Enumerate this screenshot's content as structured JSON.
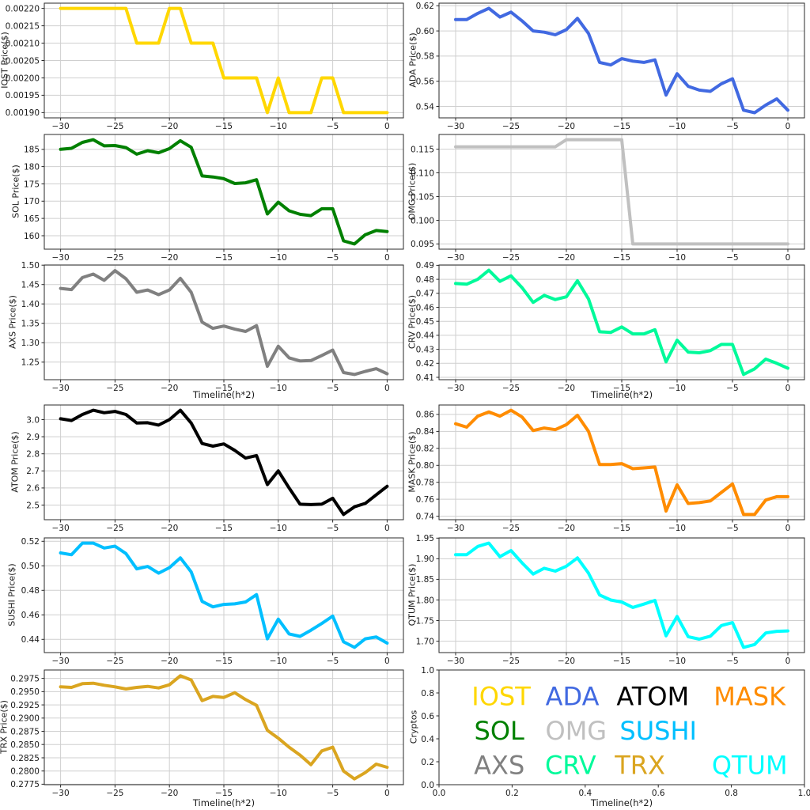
{
  "figure": {
    "background": "#ffffff",
    "grid_color": "#cfcfcf",
    "axis_color": "#2a2a2a",
    "tick_label_color": "#1a1a1a"
  },
  "x_axis": {
    "label": "Timeline(h*2)",
    "start": -30,
    "end": 0,
    "xlim": [
      -31.5,
      1.5
    ],
    "ticks": [
      -30,
      -25,
      -20,
      -15,
      -10,
      -5,
      0
    ],
    "tick_labels": [
      "−30",
      "−25",
      "−20",
      "−15",
      "−10",
      "−5",
      "0"
    ]
  },
  "chart_data": [
    {
      "type": "line",
      "name": "IOST",
      "ylabel": "IOST Price($)",
      "color": "#FFD700",
      "grid": true,
      "ylim": [
        0.001885,
        0.002215
      ],
      "yticks": [
        0.0019,
        0.00195,
        0.002,
        0.00205,
        0.0021,
        0.00215,
        0.0022
      ],
      "ytick_labels": [
        "0.00190",
        "0.00195",
        "0.00200",
        "0.00205",
        "0.00210",
        "0.00215",
        "0.00220"
      ],
      "values": [
        0.0022,
        0.0022,
        0.0022,
        0.0022,
        0.0022,
        0.0022,
        0.0022,
        0.0021,
        0.0021,
        0.0021,
        0.0022,
        0.0022,
        0.0021,
        0.0021,
        0.0021,
        0.002,
        0.002,
        0.002,
        0.002,
        0.0019,
        0.002,
        0.0019,
        0.0019,
        0.0019,
        0.002,
        0.002,
        0.0019,
        0.0019,
        0.0019,
        0.0019,
        0.0019
      ]
    },
    {
      "type": "line",
      "name": "ADA",
      "ylabel": "ADA Price($)",
      "color": "#4169E1",
      "grid": true,
      "ylim": [
        0.5309,
        0.6221
      ],
      "yticks": [
        0.54,
        0.56,
        0.58,
        0.6,
        0.62
      ],
      "ytick_labels": [
        "0.54",
        "0.56",
        "0.58",
        "0.60",
        "0.62"
      ],
      "values": [
        0.609,
        0.609,
        0.614,
        0.618,
        0.611,
        0.615,
        0.608,
        0.6,
        0.599,
        0.597,
        0.601,
        0.61,
        0.598,
        0.575,
        0.573,
        0.578,
        0.576,
        0.575,
        0.577,
        0.549,
        0.566,
        0.556,
        0.553,
        0.552,
        0.558,
        0.562,
        0.537,
        0.535,
        0.541,
        0.546,
        0.537
      ]
    },
    {
      "type": "line",
      "name": "SOL",
      "ylabel": "SOL Price($)",
      "color": "#008000",
      "grid": true,
      "ylim": [
        156.1,
        189.3
      ],
      "yticks": [
        160,
        165,
        170,
        175,
        180,
        185
      ],
      "ytick_labels": [
        "160",
        "165",
        "170",
        "175",
        "180",
        "185"
      ],
      "values": [
        185.0,
        185.3,
        187.0,
        187.8,
        186.0,
        186.1,
        185.5,
        183.6,
        184.6,
        184.0,
        185.2,
        187.5,
        185.6,
        177.3,
        177.0,
        176.5,
        175.1,
        175.3,
        176.2,
        166.3,
        169.7,
        167.2,
        166.2,
        165.8,
        167.8,
        167.8,
        158.5,
        157.6,
        160.3,
        161.5,
        161.2
      ]
    },
    {
      "type": "line",
      "name": "OMG",
      "ylabel": "OMG Price($)",
      "color": "#C0C0C0",
      "grid": true,
      "ylim": [
        0.0939,
        0.1181
      ],
      "yticks": [
        0.095,
        0.1,
        0.105,
        0.11,
        0.115
      ],
      "ytick_labels": [
        "0.095",
        "0.100",
        "0.105",
        "0.110",
        "0.115"
      ],
      "values": [
        0.1155,
        0.1155,
        0.1155,
        0.1155,
        0.1155,
        0.1155,
        0.1155,
        0.1155,
        0.1155,
        0.1155,
        0.117,
        0.117,
        0.117,
        0.117,
        0.117,
        0.117,
        0.095,
        0.095,
        0.095,
        0.095,
        0.095,
        0.095,
        0.095,
        0.095,
        0.095,
        0.095,
        0.095,
        0.095,
        0.095,
        0.095,
        0.095
      ]
    },
    {
      "type": "line",
      "name": "AXS",
      "ylabel": "AXS Price($)",
      "color": "#808080",
      "grid": true,
      "xlabel": "Timeline(h*2)",
      "ylim": [
        1.2046,
        1.5005
      ],
      "yticks": [
        1.25,
        1.3,
        1.35,
        1.4,
        1.45,
        1.5
      ],
      "ytick_labels": [
        "1.25",
        "1.30",
        "1.35",
        "1.40",
        "1.45",
        "1.50"
      ],
      "values": [
        1.44,
        1.437,
        1.468,
        1.477,
        1.461,
        1.486,
        1.465,
        1.43,
        1.436,
        1.424,
        1.436,
        1.466,
        1.43,
        1.353,
        1.337,
        1.343,
        1.335,
        1.329,
        1.344,
        1.239,
        1.291,
        1.261,
        1.253,
        1.254,
        1.267,
        1.281,
        1.223,
        1.218,
        1.226,
        1.233,
        1.22
      ]
    },
    {
      "type": "line",
      "name": "CRV",
      "ylabel": "CRV Price($)",
      "color": "#00FA9A",
      "grid": true,
      "xlabel": "Timeline(h*2)",
      "ylim": [
        0.40828,
        0.49022
      ],
      "yticks": [
        0.41,
        0.42,
        0.43,
        0.44,
        0.45,
        0.46,
        0.47,
        0.48,
        0.49
      ],
      "ytick_labels": [
        "0.41",
        "0.42",
        "0.43",
        "0.44",
        "0.45",
        "0.46",
        "0.47",
        "0.48",
        "0.49"
      ],
      "values": [
        0.477,
        0.4765,
        0.48,
        0.4865,
        0.4785,
        0.4825,
        0.474,
        0.4635,
        0.4685,
        0.4655,
        0.4675,
        0.479,
        0.466,
        0.4425,
        0.442,
        0.446,
        0.441,
        0.441,
        0.444,
        0.421,
        0.4365,
        0.428,
        0.4275,
        0.429,
        0.4335,
        0.4335,
        0.412,
        0.416,
        0.423,
        0.42,
        0.4165
      ]
    },
    {
      "type": "line",
      "name": "ATOM",
      "ylabel": "ATOM Price($)",
      "color": "#000000",
      "grid": true,
      "ylim": [
        2.4145,
        3.0855
      ],
      "yticks": [
        2.5,
        2.6,
        2.7,
        2.8,
        2.9,
        3.0
      ],
      "ytick_labels": [
        "2.5",
        "2.6",
        "2.7",
        "2.8",
        "2.9",
        "3.0"
      ],
      "values": [
        3.005,
        2.995,
        3.03,
        3.055,
        3.04,
        3.048,
        3.03,
        2.98,
        2.982,
        2.968,
        3.0,
        3.055,
        2.98,
        2.86,
        2.845,
        2.858,
        2.82,
        2.775,
        2.79,
        2.62,
        2.7,
        2.6,
        2.505,
        2.503,
        2.505,
        2.54,
        2.445,
        2.49,
        2.51,
        2.56,
        2.61
      ]
    },
    {
      "type": "line",
      "name": "MASK",
      "ylabel": "MASK Price($)",
      "color": "#FF8C00",
      "grid": true,
      "ylim": [
        0.73585,
        0.87115
      ],
      "yticks": [
        0.74,
        0.76,
        0.78,
        0.8,
        0.82,
        0.84,
        0.86
      ],
      "ytick_labels": [
        "0.74",
        "0.76",
        "0.78",
        "0.80",
        "0.82",
        "0.84",
        "0.86"
      ],
      "values": [
        0.849,
        0.845,
        0.858,
        0.863,
        0.858,
        0.865,
        0.857,
        0.841,
        0.844,
        0.842,
        0.848,
        0.859,
        0.84,
        0.801,
        0.801,
        0.802,
        0.796,
        0.797,
        0.798,
        0.746,
        0.777,
        0.755,
        0.756,
        0.758,
        0.768,
        0.778,
        0.742,
        0.742,
        0.759,
        0.763,
        0.763
      ]
    },
    {
      "type": "line",
      "name": "SUSHI",
      "ylabel": "SUSHI Price($)",
      "color": "#00BFFF",
      "grid": true,
      "ylim": [
        0.42925,
        0.52275
      ],
      "yticks": [
        0.44,
        0.46,
        0.48,
        0.5,
        0.52
      ],
      "ytick_labels": [
        "0.44",
        "0.46",
        "0.48",
        "0.50",
        "0.52"
      ],
      "values": [
        0.5105,
        0.509,
        0.5185,
        0.5185,
        0.5145,
        0.516,
        0.51,
        0.4975,
        0.4995,
        0.494,
        0.4985,
        0.5065,
        0.495,
        0.471,
        0.4665,
        0.4685,
        0.469,
        0.4705,
        0.4765,
        0.4405,
        0.4565,
        0.4445,
        0.4425,
        0.4475,
        0.453,
        0.459,
        0.438,
        0.4335,
        0.4405,
        0.442,
        0.437
      ]
    },
    {
      "type": "line",
      "name": "QTUM",
      "ylabel": "QTUM Price($)",
      "color": "#00FFFF",
      "grid": true,
      "ylim": [
        1.67235,
        1.95065
      ],
      "yticks": [
        1.7,
        1.75,
        1.8,
        1.85,
        1.9,
        1.95
      ],
      "ytick_labels": [
        "1.70",
        "1.75",
        "1.80",
        "1.85",
        "1.90",
        "1.95"
      ],
      "values": [
        1.91,
        1.91,
        1.93,
        1.938,
        1.905,
        1.92,
        1.89,
        1.863,
        1.877,
        1.87,
        1.882,
        1.902,
        1.865,
        1.812,
        1.8,
        1.795,
        1.782,
        1.79,
        1.799,
        1.713,
        1.76,
        1.711,
        1.705,
        1.712,
        1.738,
        1.745,
        1.685,
        1.692,
        1.72,
        1.724,
        1.725
      ]
    },
    {
      "type": "line",
      "name": "TRX",
      "ylabel": "TRX Price($)",
      "color": "#DAA520",
      "grid": true,
      "xlabel": "Timeline(h*2)",
      "ylim": [
        0.27741,
        0.29909
      ],
      "yticks": [
        0.2775,
        0.28,
        0.2825,
        0.285,
        0.2875,
        0.29,
        0.2925,
        0.295,
        0.2975
      ],
      "ytick_labels": [
        "0.2775",
        "0.2800",
        "0.2825",
        "0.2850",
        "0.2875",
        "0.2900",
        "0.2925",
        "0.2950",
        "0.2975"
      ],
      "values": [
        0.2959,
        0.2958,
        0.2965,
        0.2966,
        0.2962,
        0.2959,
        0.2955,
        0.2958,
        0.296,
        0.2957,
        0.2963,
        0.298,
        0.2972,
        0.2933,
        0.2941,
        0.2939,
        0.2948,
        0.2935,
        0.2924,
        0.2877,
        0.2862,
        0.2845,
        0.283,
        0.2812,
        0.2838,
        0.2845,
        0.28,
        0.2785,
        0.2797,
        0.2813,
        0.2807
      ]
    },
    {
      "type": "legend",
      "name": "Cryptos",
      "ylabel": "Cryptos",
      "grid": false,
      "xlabel": "Timeline(h*2)",
      "xlim": [
        0,
        1
      ],
      "ylim": [
        0,
        1
      ],
      "xticks": [
        0,
        0.2,
        0.4,
        0.6,
        0.8,
        1.0
      ],
      "xtick_labels": [
        "0.0",
        "0.2",
        "0.4",
        "0.6",
        "0.8",
        "1.0"
      ],
      "yticks": [
        0,
        0.2,
        0.4,
        0.6,
        0.8,
        1.0
      ],
      "ytick_labels": [
        "0.0",
        "0.2",
        "0.4",
        "0.6",
        "0.8",
        "1.0"
      ],
      "items": [
        {
          "label": "IOST",
          "color": "#FFD700",
          "x": 0.17,
          "y": 0.77
        },
        {
          "label": "ADA",
          "color": "#4169E1",
          "x": 0.365,
          "y": 0.77
        },
        {
          "label": "ATOM",
          "color": "#000000",
          "x": 0.585,
          "y": 0.77
        },
        {
          "label": "MASK",
          "color": "#FF8C00",
          "x": 0.85,
          "y": 0.77
        },
        {
          "label": "SOL",
          "color": "#008000",
          "x": 0.165,
          "y": 0.47
        },
        {
          "label": "OMG",
          "color": "#C0C0C0",
          "x": 0.375,
          "y": 0.47
        },
        {
          "label": "SUSHI",
          "color": "#00BFFF",
          "x": 0.6,
          "y": 0.47
        },
        {
          "label": "AXS",
          "color": "#808080",
          "x": 0.165,
          "y": 0.17
        },
        {
          "label": "CRV",
          "color": "#00FA9A",
          "x": 0.36,
          "y": 0.17
        },
        {
          "label": "TRX",
          "color": "#DAA520",
          "x": 0.55,
          "y": 0.17
        },
        {
          "label": "QTUM",
          "color": "#00FFFF",
          "x": 0.85,
          "y": 0.17
        }
      ]
    }
  ]
}
